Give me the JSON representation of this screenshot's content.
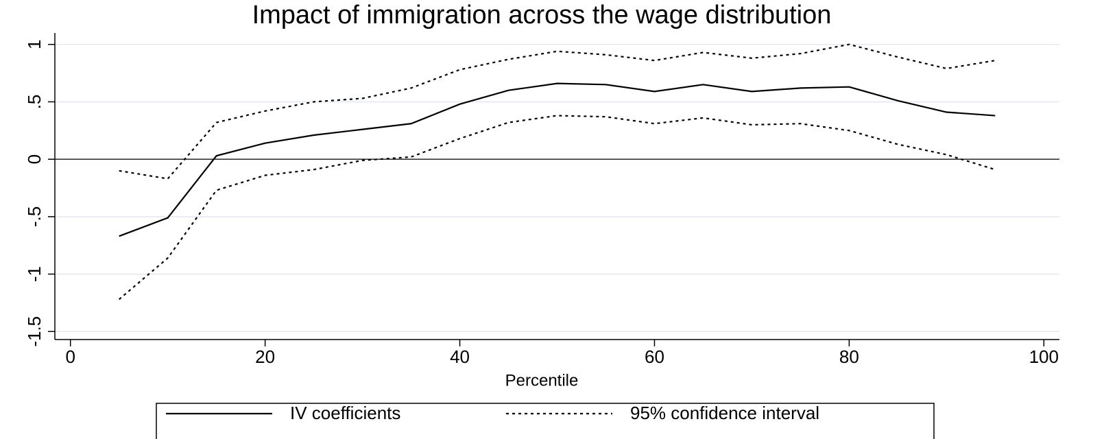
{
  "chart_data": {
    "type": "line",
    "title": "Impact of immigration across the wage distribution",
    "xlabel": "Percentile",
    "x": [
      5,
      10,
      15,
      20,
      25,
      30,
      35,
      40,
      45,
      50,
      55,
      60,
      65,
      70,
      75,
      80,
      85,
      90,
      95
    ],
    "series": [
      {
        "name": "IV coefficients",
        "color": "#000000",
        "style": "solid",
        "values": [
          -0.67,
          -0.51,
          0.03,
          0.14,
          0.21,
          0.26,
          0.31,
          0.48,
          0.6,
          0.66,
          0.65,
          0.59,
          0.65,
          0.59,
          0.62,
          0.63,
          0.51,
          0.41,
          0.38
        ]
      },
      {
        "name": "95% confidence interval",
        "color": "#000000",
        "style": "dotted",
        "upper": [
          -0.1,
          -0.17,
          0.32,
          0.42,
          0.5,
          0.53,
          0.62,
          0.78,
          0.87,
          0.94,
          0.91,
          0.86,
          0.93,
          0.88,
          0.92,
          1.0,
          0.89,
          0.79,
          0.86
        ],
        "lower": [
          -1.22,
          -0.86,
          -0.27,
          -0.14,
          -0.09,
          -0.01,
          0.02,
          0.18,
          0.32,
          0.38,
          0.37,
          0.31,
          0.36,
          0.3,
          0.31,
          0.25,
          0.13,
          0.04,
          -0.09
        ]
      }
    ],
    "xlim": [
      -1.6,
      101.6
    ],
    "ylim": [
      -1.57,
      1.1
    ],
    "xticks": [
      0,
      20,
      40,
      60,
      80,
      100
    ],
    "yticks": [
      {
        "value": -1.5,
        "label": "-1.5"
      },
      -1,
      {
        "value": -0.5,
        "label": "-.5"
      },
      0,
      {
        "value": 0.5,
        "label": ".5"
      },
      1
    ],
    "grid": true,
    "reference_line": 0
  }
}
